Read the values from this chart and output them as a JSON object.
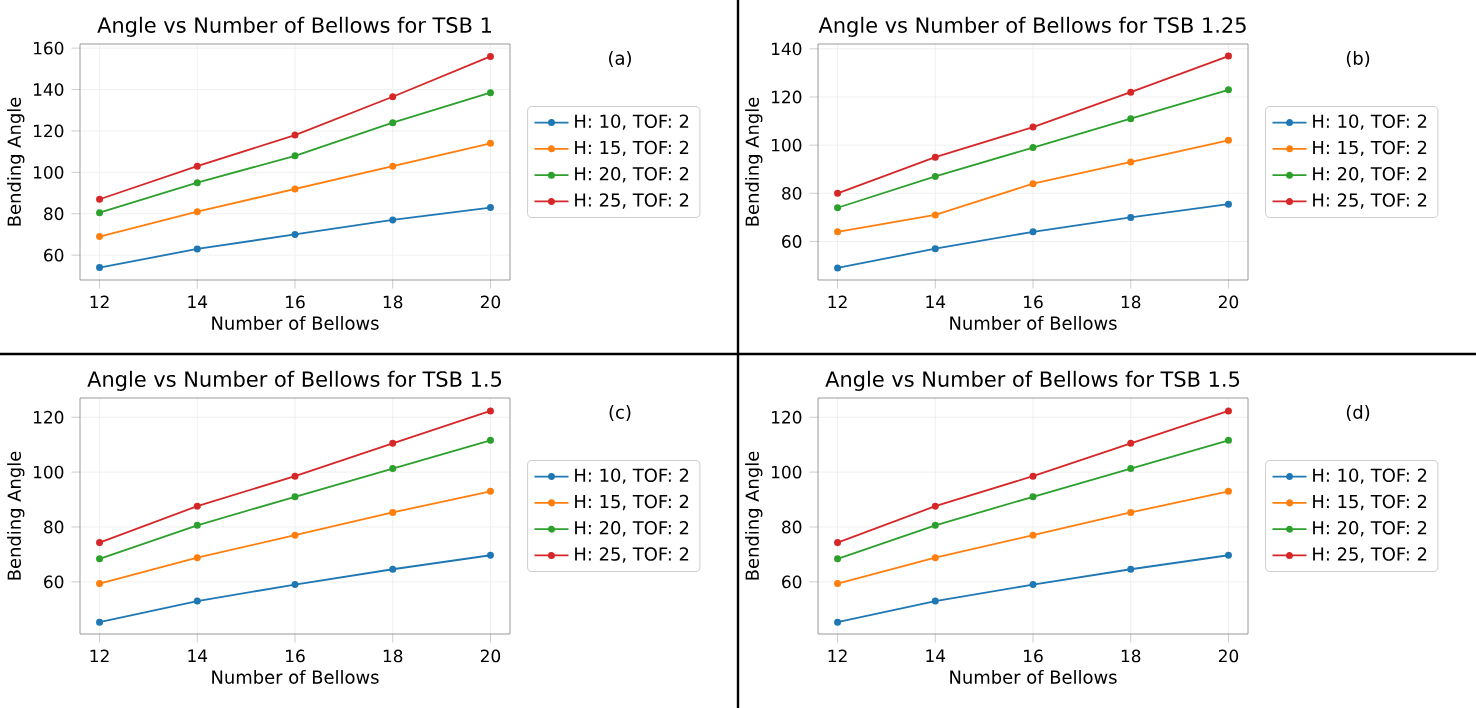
{
  "chart_data": [
    {
      "type": "line",
      "title": "Angle vs Number of Bellows for TSB 1",
      "xlabel": "Number of Bellows",
      "ylabel": "Bending Angle",
      "x": [
        12,
        14,
        16,
        18,
        20
      ],
      "xlim": [
        11.6,
        20.4
      ],
      "xticks": [
        12,
        14,
        16,
        18,
        20
      ],
      "ylim": [
        48,
        162
      ],
      "yticks": [
        60,
        80,
        100,
        120,
        140,
        160
      ],
      "grid": true,
      "legend": "right",
      "marker": "circle",
      "annotations": [
        "(a)"
      ],
      "series": [
        {
          "name": "H: 10, TOF: 2",
          "color": "#1f77b4",
          "values": [
            54,
            63,
            70,
            77,
            83
          ]
        },
        {
          "name": "H: 15, TOF: 2",
          "color": "#ff7f0e",
          "values": [
            69,
            81,
            92,
            103,
            114
          ]
        },
        {
          "name": "H: 20, TOF: 2",
          "color": "#2ca02c",
          "values": [
            80.5,
            95,
            108,
            124,
            138.5
          ]
        },
        {
          "name": "H: 25, TOF: 2",
          "color": "#d62728",
          "values": [
            87,
            103,
            118,
            136.5,
            156
          ]
        }
      ]
    },
    {
      "type": "line",
      "title": "Angle vs Number of Bellows for TSB 1.25",
      "xlabel": "Number of Bellows",
      "ylabel": "Bending Angle",
      "x": [
        12,
        14,
        16,
        18,
        20
      ],
      "xlim": [
        11.6,
        20.4
      ],
      "xticks": [
        12,
        14,
        16,
        18,
        20
      ],
      "ylim": [
        44,
        142
      ],
      "yticks": [
        60,
        80,
        100,
        120,
        140
      ],
      "grid": true,
      "legend": "right",
      "marker": "circle",
      "annotations": [
        "(b)"
      ],
      "series": [
        {
          "name": "H: 10, TOF: 2",
          "color": "#1f77b4",
          "values": [
            49,
            57,
            64,
            70,
            75.5
          ]
        },
        {
          "name": "H: 15, TOF: 2",
          "color": "#ff7f0e",
          "values": [
            64,
            71,
            84,
            93,
            102
          ]
        },
        {
          "name": "H: 20, TOF: 2",
          "color": "#2ca02c",
          "values": [
            74,
            87,
            99,
            111,
            123
          ]
        },
        {
          "name": "H: 25, TOF: 2",
          "color": "#d62728",
          "values": [
            80,
            95,
            107.5,
            122,
            137
          ]
        }
      ]
    },
    {
      "type": "line",
      "title": "Angle vs Number of Bellows for TSB 1.5",
      "xlabel": "Number of Bellows",
      "ylabel": "Bending Angle",
      "x": [
        12,
        14,
        16,
        18,
        20
      ],
      "xlim": [
        11.6,
        20.4
      ],
      "xticks": [
        12,
        14,
        16,
        18,
        20
      ],
      "ylim": [
        41,
        127
      ],
      "yticks": [
        60,
        80,
        100,
        120
      ],
      "grid": true,
      "legend": "right",
      "marker": "circle",
      "annotations": [
        "(c)"
      ],
      "series": [
        {
          "name": "H: 10, TOF: 2",
          "color": "#1f77b4",
          "values": [
            45.3,
            53,
            59,
            64.6,
            69.7
          ]
        },
        {
          "name": "H: 15, TOF: 2",
          "color": "#ff7f0e",
          "values": [
            59.4,
            68.8,
            77,
            85.3,
            93
          ]
        },
        {
          "name": "H: 20, TOF: 2",
          "color": "#2ca02c",
          "values": [
            68.4,
            80.6,
            91,
            101.3,
            111.6
          ]
        },
        {
          "name": "H: 25, TOF: 2",
          "color": "#d62728",
          "values": [
            74.3,
            87.6,
            98.5,
            110.5,
            122.3
          ]
        }
      ]
    },
    {
      "type": "line",
      "title": "Angle vs Number of Bellows for TSB 1.5",
      "xlabel": "Number of Bellows",
      "ylabel": "Bending Angle",
      "x": [
        12,
        14,
        16,
        18,
        20
      ],
      "xlim": [
        11.6,
        20.4
      ],
      "xticks": [
        12,
        14,
        16,
        18,
        20
      ],
      "ylim": [
        41,
        127
      ],
      "yticks": [
        60,
        80,
        100,
        120
      ],
      "grid": true,
      "legend": "right",
      "marker": "circle",
      "annotations": [
        "(d)"
      ],
      "series": [
        {
          "name": "H: 10, TOF: 2",
          "color": "#1f77b4",
          "values": [
            45.3,
            53,
            59,
            64.6,
            69.7
          ]
        },
        {
          "name": "H: 15, TOF: 2",
          "color": "#ff7f0e",
          "values": [
            59.4,
            68.8,
            77,
            85.3,
            93
          ]
        },
        {
          "name": "H: 20, TOF: 2",
          "color": "#2ca02c",
          "values": [
            68.4,
            80.6,
            91,
            101.3,
            111.6
          ]
        },
        {
          "name": "H: 25, TOF: 2",
          "color": "#d62728",
          "values": [
            74.3,
            87.6,
            98.5,
            110.5,
            122.3
          ]
        }
      ]
    }
  ]
}
